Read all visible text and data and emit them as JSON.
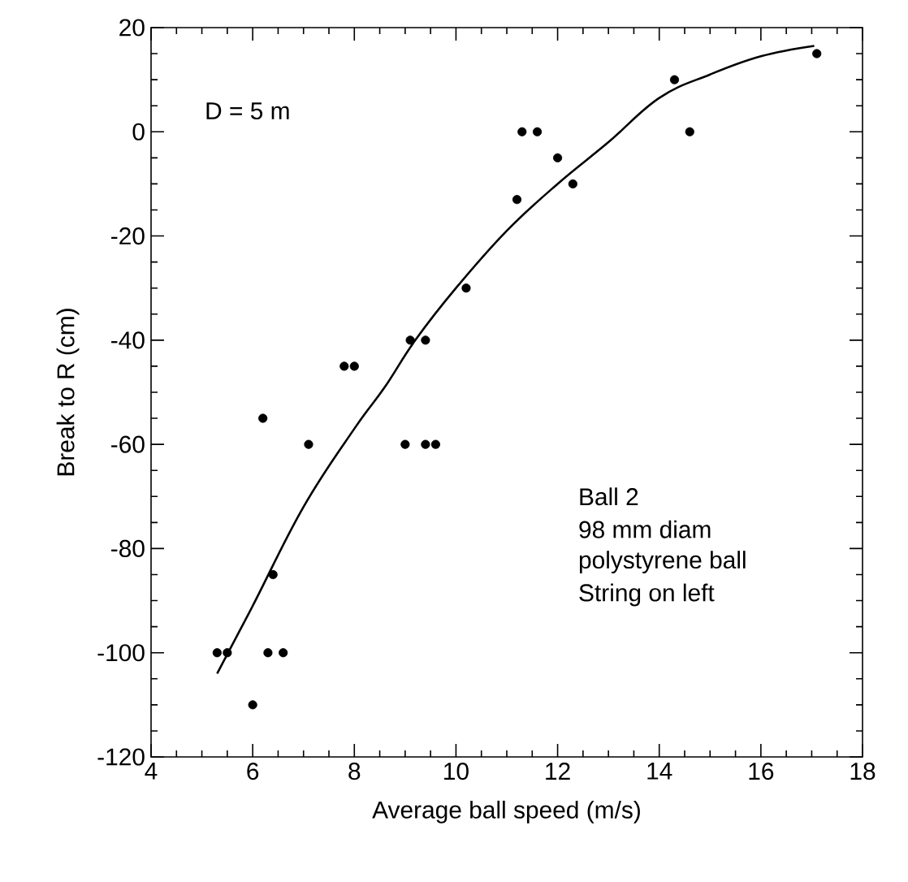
{
  "chart_data": {
    "type": "scatter",
    "xlabel": "Average ball speed (m/s)",
    "ylabel": "Break to R (cm)",
    "xlim": [
      4,
      18
    ],
    "ylim": [
      -120,
      20
    ],
    "xticks": [
      4,
      6,
      8,
      10,
      12,
      14,
      16,
      18
    ],
    "yticks": [
      -120,
      -100,
      -80,
      -60,
      -40,
      -20,
      0,
      20
    ],
    "annotations": [
      "D = 5 m",
      "Ball 2",
      "98 mm diam",
      "polystyrene ball",
      "String on left"
    ],
    "series": [
      {
        "color": "#000000",
        "marker": "circle",
        "x": [
          5.3,
          5.5,
          6.0,
          6.2,
          6.3,
          6.4,
          6.6,
          7.1,
          7.8,
          8.0,
          9.0,
          9.1,
          9.4,
          9.4,
          9.6,
          10.2,
          11.2,
          11.3,
          11.6,
          12.0,
          12.3,
          14.3,
          14.6,
          17.1
        ],
        "values": [
          -100,
          -100,
          -110,
          -55,
          -100,
          -85,
          -100,
          -60,
          -45,
          -45,
          -60,
          -40,
          -40,
          -60,
          -60,
          -30,
          -13,
          0,
          0,
          -5,
          -10,
          10,
          0,
          15
        ]
      },
      {
        "type": "line",
        "color": "#000000",
        "marker": "none",
        "x": [
          5.3,
          6,
          7,
          8,
          8.6,
          9.2,
          10,
          11,
          12,
          13,
          14,
          15,
          16,
          17.05
        ],
        "values": [
          -104,
          -91,
          -72,
          -57,
          -49,
          -40,
          -30,
          -19,
          -10,
          -2,
          6.5,
          11,
          14.5,
          16.5
        ]
      }
    ]
  }
}
